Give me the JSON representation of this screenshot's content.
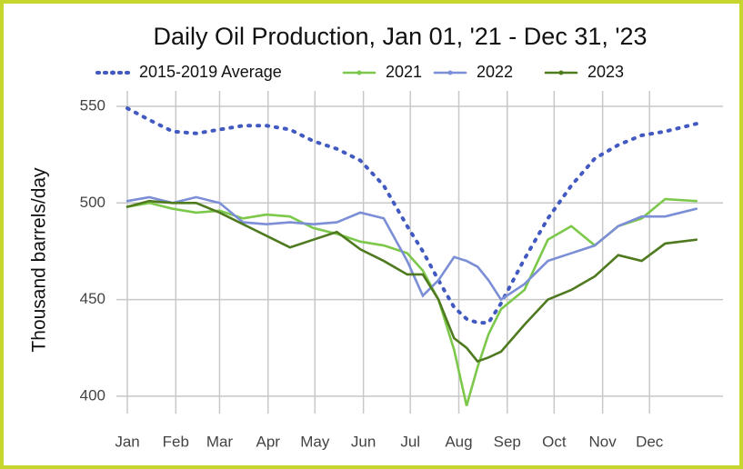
{
  "chart_data": {
    "type": "line",
    "title": "Daily Oil Production, Jan 01, '21 - Dec 31, '23",
    "y_label": "Thousand barrels/day",
    "x": [
      1,
      15,
      30,
      45,
      60,
      75,
      90,
      105,
      120,
      135,
      150,
      165,
      180,
      190,
      200,
      210,
      218,
      225,
      232,
      240,
      255,
      270,
      285,
      300,
      315,
      330,
      345,
      365
    ],
    "xlim": [
      -6,
      382
    ],
    "xticks": [
      {
        "value": 1,
        "label": "Jan"
      },
      {
        "value": 32,
        "label": "Feb"
      },
      {
        "value": 60,
        "label": "Mar"
      },
      {
        "value": 91,
        "label": "Apr"
      },
      {
        "value": 121,
        "label": "May"
      },
      {
        "value": 152,
        "label": "Jun"
      },
      {
        "value": 182,
        "label": "Jul"
      },
      {
        "value": 213,
        "label": "Aug"
      },
      {
        "value": 244,
        "label": "Sep"
      },
      {
        "value": 274,
        "label": "Oct"
      },
      {
        "value": 305,
        "label": "Nov"
      },
      {
        "value": 335,
        "label": "Dec"
      }
    ],
    "ylim": [
      391,
      558
    ],
    "yticks": [
      400,
      450,
      500,
      550
    ],
    "grid": true,
    "legend": "top",
    "series": [
      {
        "name": "2015-2019 Average",
        "color": "#4159c0",
        "dash": "dotted",
        "values": [
          549,
          543,
          537,
          536,
          538,
          540,
          540,
          538,
          532,
          528,
          522,
          509,
          488,
          475,
          460,
          446,
          440,
          438,
          438,
          448,
          471,
          492,
          509,
          523,
          530,
          535,
          537,
          541
        ]
      },
      {
        "name": "2021",
        "color": "#7cc84a",
        "values": [
          498,
          500,
          497,
          495,
          496,
          492,
          494,
          493,
          487,
          484,
          480,
          478,
          474,
          465,
          450,
          424,
          395,
          415,
          432,
          445,
          455,
          481,
          488,
          478,
          488,
          492,
          502,
          501
        ]
      },
      {
        "name": "2022",
        "color": "#7b8ed6",
        "values": [
          501,
          503,
          500,
          503,
          500,
          490,
          489,
          490,
          489,
          490,
          495,
          492,
          470,
          452,
          460,
          472,
          470,
          467,
          460,
          450,
          458,
          470,
          474,
          478,
          488,
          493,
          493,
          497
        ]
      },
      {
        "name": "2023",
        "color": "#4f7a1f",
        "values": [
          498,
          501,
          500,
          500,
          495,
          489,
          483,
          477,
          481,
          485,
          476,
          470,
          463,
          463,
          450,
          430,
          425,
          418,
          420,
          423,
          437,
          450,
          455,
          462,
          473,
          470,
          479,
          481
        ]
      }
    ]
  }
}
